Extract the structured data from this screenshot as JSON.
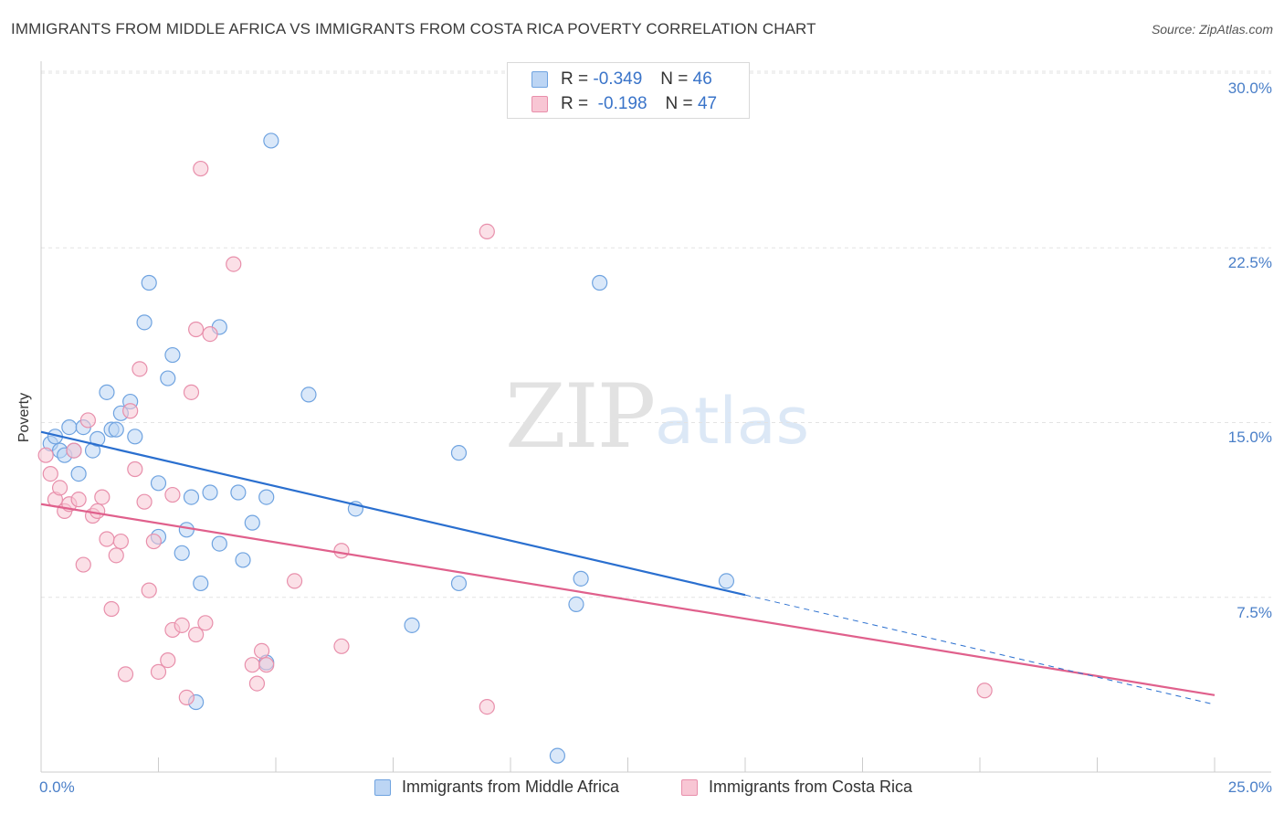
{
  "title": "IMMIGRANTS FROM MIDDLE AFRICA VS IMMIGRANTS FROM COSTA RICA POVERTY CORRELATION CHART",
  "source": "Source: ZipAtlas.com",
  "watermark": {
    "zip": "ZIP",
    "atlas": "atlas"
  },
  "stats": [
    {
      "r_label": "R =",
      "r_value": "-0.349",
      "n_label": "N =",
      "n_value": "46",
      "color": "#a8c8f0"
    },
    {
      "r_label": "R =",
      "r_value": "-0.198",
      "n_label": "N =",
      "n_value": "47",
      "color": "#f4b8c8"
    }
  ],
  "chart_data": {
    "type": "scatter",
    "title": "IMMIGRANTS FROM MIDDLE AFRICA VS IMMIGRANTS FROM COSTA RICA POVERTY CORRELATION CHART",
    "xlabel": "",
    "ylabel": "Poverty",
    "xlim": [
      0,
      25
    ],
    "ylim": [
      0,
      31
    ],
    "x_tick_labels": [
      {
        "value": 0,
        "label": "0.0%"
      },
      {
        "value": 25,
        "label": "25.0%"
      }
    ],
    "y_tick_labels": [
      {
        "value": 7.5,
        "label": "7.5%"
      },
      {
        "value": 15,
        "label": "15.0%"
      },
      {
        "value": 22.5,
        "label": "22.5%"
      },
      {
        "value": 30,
        "label": "30.0%"
      }
    ],
    "grid": "horizontal dashed",
    "legend": "bottom-center",
    "series": [
      {
        "name": "Immigrants from Middle Africa",
        "color": "#6fa3e0",
        "fill": "#bcd5f4",
        "trend": {
          "x": [
            0,
            15
          ],
          "y": [
            14.6,
            7.6
          ]
        },
        "trend_dashed": {
          "x": [
            15,
            25
          ],
          "y": [
            7.6,
            2.9
          ]
        },
        "points": [
          [
            0.2,
            14.1
          ],
          [
            0.3,
            14.4
          ],
          [
            0.4,
            13.8
          ],
          [
            0.5,
            13.6
          ],
          [
            0.6,
            14.8
          ],
          [
            0.7,
            13.8
          ],
          [
            0.8,
            12.8
          ],
          [
            0.9,
            14.8
          ],
          [
            1.1,
            13.8
          ],
          [
            1.2,
            14.3
          ],
          [
            1.4,
            16.3
          ],
          [
            1.5,
            14.7
          ],
          [
            1.6,
            14.7
          ],
          [
            1.7,
            15.4
          ],
          [
            1.9,
            15.9
          ],
          [
            2.0,
            14.4
          ],
          [
            2.2,
            19.3
          ],
          [
            2.3,
            21.0
          ],
          [
            2.5,
            12.4
          ],
          [
            2.5,
            10.1
          ],
          [
            2.7,
            16.9
          ],
          [
            2.8,
            17.9
          ],
          [
            3.0,
            9.4
          ],
          [
            3.1,
            10.4
          ],
          [
            3.2,
            11.8
          ],
          [
            3.3,
            3.0
          ],
          [
            3.4,
            8.1
          ],
          [
            3.6,
            12.0
          ],
          [
            3.8,
            9.8
          ],
          [
            3.8,
            19.1
          ],
          [
            4.2,
            12.0
          ],
          [
            4.3,
            9.1
          ],
          [
            4.5,
            10.7
          ],
          [
            4.8,
            11.8
          ],
          [
            4.8,
            4.7
          ],
          [
            4.9,
            27.1
          ],
          [
            5.7,
            16.2
          ],
          [
            6.7,
            11.3
          ],
          [
            7.9,
            6.3
          ],
          [
            8.9,
            13.7
          ],
          [
            8.9,
            8.1
          ],
          [
            11.0,
            0.7
          ],
          [
            11.4,
            7.2
          ],
          [
            11.5,
            8.3
          ],
          [
            11.9,
            21.0
          ],
          [
            14.6,
            8.2
          ]
        ]
      },
      {
        "name": "Immigrants from Costa Rica",
        "color": "#e88fab",
        "fill": "#f8c6d4",
        "trend": {
          "x": [
            0,
            25
          ],
          "y": [
            11.5,
            3.3
          ]
        },
        "points": [
          [
            0.1,
            13.6
          ],
          [
            0.2,
            12.8
          ],
          [
            0.3,
            11.7
          ],
          [
            0.4,
            12.2
          ],
          [
            0.5,
            11.2
          ],
          [
            0.6,
            11.5
          ],
          [
            0.7,
            13.8
          ],
          [
            0.8,
            11.7
          ],
          [
            0.9,
            8.9
          ],
          [
            1.0,
            15.1
          ],
          [
            1.1,
            11.0
          ],
          [
            1.2,
            11.2
          ],
          [
            1.3,
            11.8
          ],
          [
            1.4,
            10.0
          ],
          [
            1.5,
            7.0
          ],
          [
            1.6,
            9.3
          ],
          [
            1.7,
            9.9
          ],
          [
            1.8,
            4.2
          ],
          [
            1.9,
            15.5
          ],
          [
            2.0,
            13.0
          ],
          [
            2.1,
            17.3
          ],
          [
            2.2,
            11.6
          ],
          [
            2.3,
            7.8
          ],
          [
            2.4,
            9.9
          ],
          [
            2.5,
            4.3
          ],
          [
            2.7,
            4.8
          ],
          [
            2.8,
            11.9
          ],
          [
            2.8,
            6.1
          ],
          [
            3.0,
            6.3
          ],
          [
            3.1,
            3.2
          ],
          [
            3.2,
            16.3
          ],
          [
            3.3,
            5.9
          ],
          [
            3.3,
            19.0
          ],
          [
            3.4,
            25.9
          ],
          [
            3.5,
            6.4
          ],
          [
            3.6,
            18.8
          ],
          [
            4.1,
            21.8
          ],
          [
            4.5,
            4.6
          ],
          [
            4.6,
            3.8
          ],
          [
            4.7,
            5.2
          ],
          [
            4.8,
            4.6
          ],
          [
            5.4,
            8.2
          ],
          [
            6.4,
            5.4
          ],
          [
            6.4,
            9.5
          ],
          [
            9.5,
            23.2
          ],
          [
            9.5,
            2.8
          ],
          [
            20.1,
            3.5
          ]
        ]
      }
    ]
  }
}
